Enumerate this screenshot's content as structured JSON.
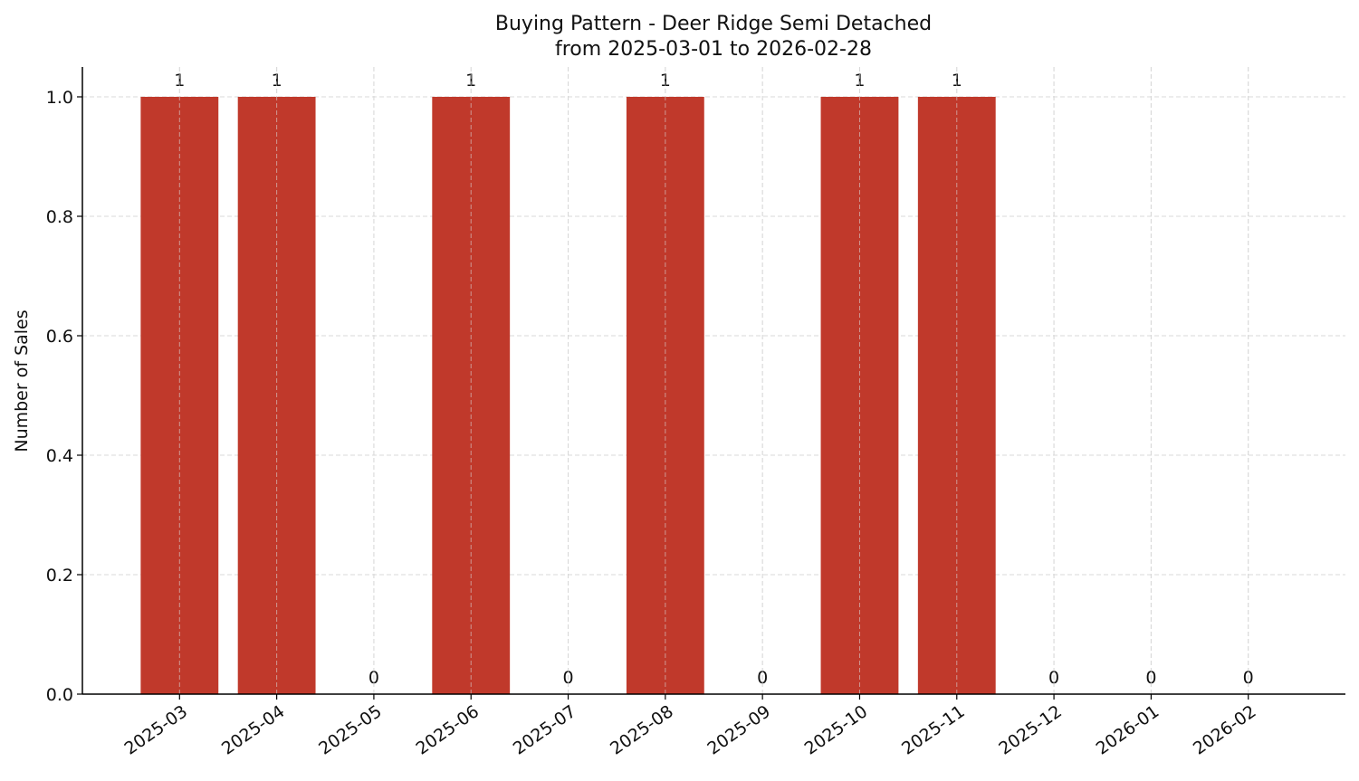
{
  "chart_data": {
    "type": "bar",
    "title": "Buying Pattern - Deer Ridge Semi Detached",
    "subtitle": "from 2025-03-01 to 2026-02-28",
    "y_label": "Number of Sales",
    "categories": [
      "2025-03",
      "2025-04",
      "2025-05",
      "2025-06",
      "2025-07",
      "2025-08",
      "2025-09",
      "2025-10",
      "2025-11",
      "2025-12",
      "2026-01",
      "2026-02"
    ],
    "values": [
      1,
      1,
      0,
      1,
      0,
      1,
      0,
      1,
      1,
      0,
      0,
      0
    ],
    "color": "#c0392b",
    "ylim": [
      0,
      1.05
    ],
    "yticks": [
      {
        "value": 0,
        "label": "0.0"
      },
      0.2,
      0.4,
      0.6,
      0.8,
      {
        "value": 1,
        "label": "1.0"
      }
    ],
    "grid": true
  }
}
